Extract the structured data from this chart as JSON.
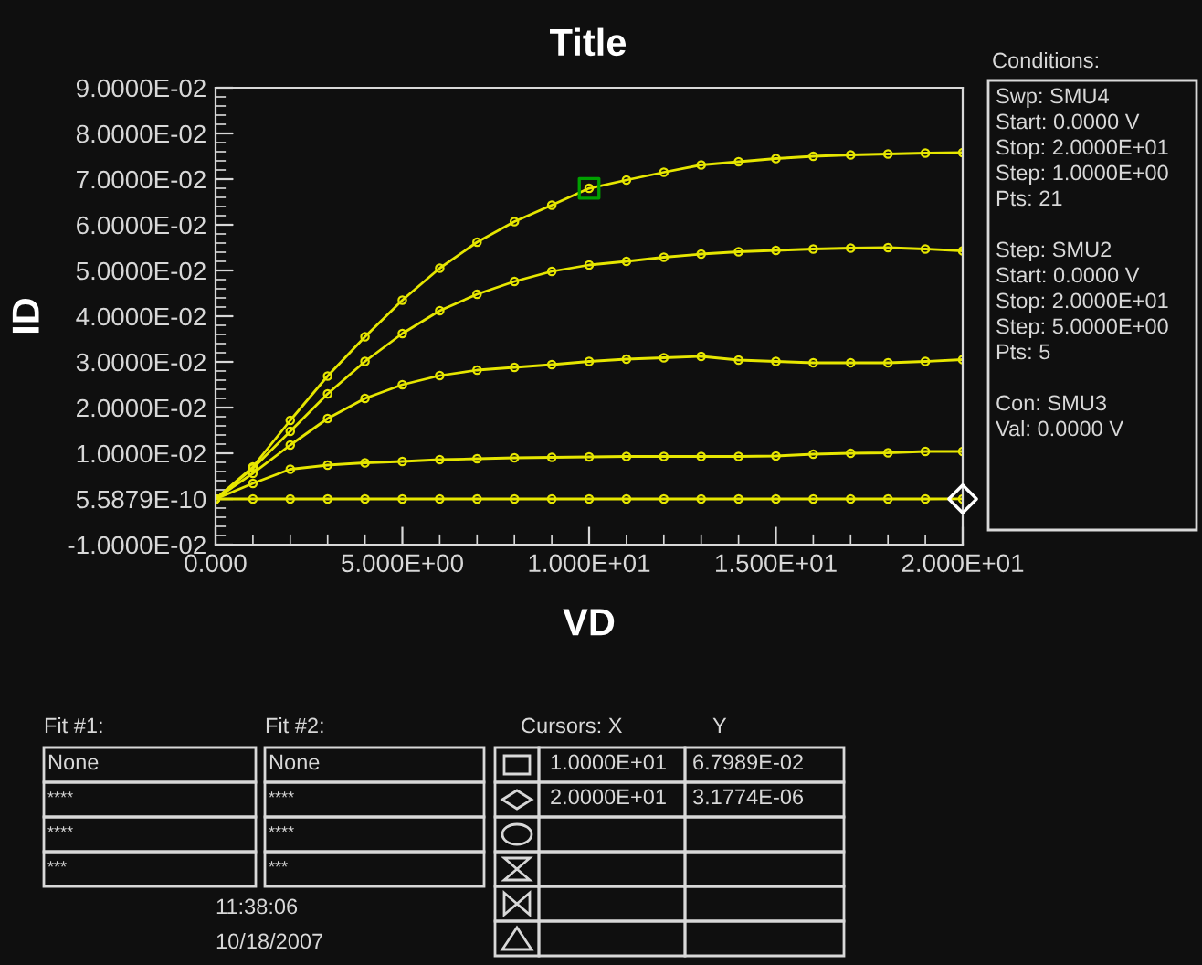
{
  "chart_data": {
    "type": "line",
    "title": "Title",
    "xlabel": "VD",
    "ylabel": "ID",
    "x": [
      0,
      1,
      2,
      3,
      4,
      5,
      6,
      7,
      8,
      9,
      10,
      11,
      12,
      13,
      14,
      15,
      16,
      17,
      18,
      19,
      20
    ],
    "series": [
      {
        "color": "#e6e600",
        "values": [
          0,
          0.007,
          0.0172,
          0.0269,
          0.0355,
          0.0435,
          0.0505,
          0.0562,
          0.0607,
          0.0643,
          0.067989,
          0.0698,
          0.0715,
          0.0731,
          0.0738,
          0.0745,
          0.075,
          0.0753,
          0.0755,
          0.0757,
          0.0758
        ]
      },
      {
        "color": "#e6e600",
        "values": [
          0,
          0.0067,
          0.0148,
          0.023,
          0.0301,
          0.0362,
          0.0412,
          0.0448,
          0.0476,
          0.0498,
          0.0512,
          0.052,
          0.0529,
          0.0536,
          0.0541,
          0.0544,
          0.0547,
          0.0549,
          0.055,
          0.0547,
          0.0543
        ]
      },
      {
        "color": "#e6e600",
        "values": [
          0,
          0.0056,
          0.0118,
          0.0176,
          0.022,
          0.025,
          0.027,
          0.0282,
          0.0288,
          0.0294,
          0.0301,
          0.0306,
          0.0309,
          0.0312,
          0.0304,
          0.0301,
          0.0298,
          0.0298,
          0.0298,
          0.0301,
          0.0305
        ]
      },
      {
        "color": "#e6e600",
        "values": [
          0,
          0.0034,
          0.0065,
          0.0074,
          0.0079,
          0.0082,
          0.0086,
          0.0088,
          0.009,
          0.0091,
          0.0092,
          0.0093,
          0.0093,
          0.0093,
          0.0093,
          0.0094,
          0.0098,
          0.01,
          0.0101,
          0.0104,
          0.0104
        ]
      },
      {
        "color": "#e6e600",
        "values": [
          0,
          0,
          0,
          0,
          0,
          0,
          0,
          0,
          0,
          0,
          0,
          0,
          0,
          0,
          0,
          0,
          0,
          0,
          0,
          0,
          3.1774e-06
        ]
      },
      {
        "type": "scatter",
        "marker": "square",
        "color": "#00a000",
        "x": [
          10
        ],
        "values": [
          0.067989
        ]
      },
      {
        "type": "scatter",
        "marker": "diamond",
        "color": "#ffffff",
        "x": [
          20
        ],
        "values": [
          3.1774e-06
        ]
      }
    ],
    "marker": "circle",
    "line_style": "solid",
    "grid": false,
    "legend": false,
    "xlim": [
      0,
      20
    ],
    "ylim": [
      -0.01,
      0.09
    ],
    "xticks": [
      {
        "value": 0,
        "label": "0.000"
      },
      {
        "value": 5,
        "label": "5.000E+00"
      },
      {
        "value": 10,
        "label": "1.000E+01"
      },
      {
        "value": 15,
        "label": "1.500E+01"
      },
      {
        "value": 20,
        "label": "2.000E+01"
      }
    ],
    "yticks": [
      {
        "value": -0.01,
        "label": "-1.0000E-02"
      },
      {
        "value": 5.5879e-10,
        "label": "5.5879E-10"
      },
      {
        "value": 0.01,
        "label": "1.0000E-02"
      },
      {
        "value": 0.02,
        "label": "2.0000E-02"
      },
      {
        "value": 0.03,
        "label": "3.0000E-02"
      },
      {
        "value": 0.04,
        "label": "4.0000E-02"
      },
      {
        "value": 0.05,
        "label": "5.0000E-02"
      },
      {
        "value": 0.06,
        "label": "6.0000E-02"
      },
      {
        "value": 0.07,
        "label": "7.0000E-02"
      },
      {
        "value": 0.08,
        "label": "8.0000E-02"
      },
      {
        "value": 0.09,
        "label": "9.0000E-02"
      }
    ],
    "annotations": [
      "Conditions:",
      "Swp: SMU4\nStart: 0.0000 V\nStop: 2.0000E+01\nStep: 1.0000E+00\nPts: 21\n\nStep: SMU2\nStart: 0.0000 V\nStop: 2.0000E+01\nStep: 5.0000E+00\nPts: 5\n\nCon: SMU3\nVal: 0.0000 V",
      "Fit #1:",
      "Fit #2:",
      "None",
      "****",
      "****",
      "***",
      "None",
      "****",
      "****",
      "***",
      "Cursors: X",
      "Y",
      "1.0000E+01",
      "6.7989E-02",
      "2.0000E+01",
      "3.1774E-06",
      "11:38:06",
      "10/18/2007"
    ]
  }
}
